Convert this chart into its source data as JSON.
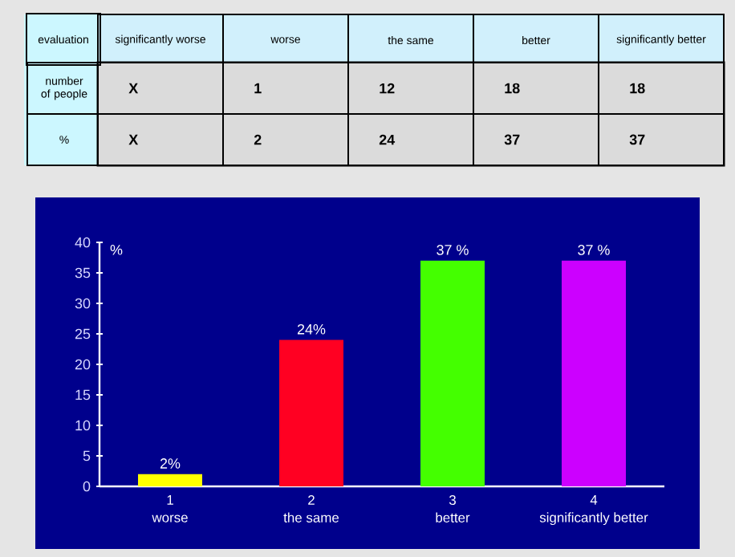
{
  "chart_data": [
    {
      "type": "other",
      "ylabel": "evaluation",
      "categories": [
        "significantly worse",
        "worse",
        "the same",
        "better",
        "significantly better"
      ],
      "y_categories": [
        "number of people",
        "%"
      ],
      "cell_labels": [
        [
          "X",
          "1",
          "12",
          "18",
          "18"
        ],
        [
          "X",
          "2",
          "24",
          "37",
          "37"
        ]
      ]
    },
    {
      "type": "bar",
      "ylabel": "%",
      "categories": [
        "1\nworse",
        "2\nthe same",
        "3\nbetter",
        "4\nsignificantly better"
      ],
      "values": [
        2,
        24,
        37,
        37
      ],
      "colors": [
        "#ffff00",
        "#ff0022",
        "#44ff00",
        "#cc00ff"
      ],
      "value_labels": [
        "2%",
        "24%",
        "37 %",
        "37 %"
      ],
      "ylim": [
        0,
        40
      ],
      "yticks": [
        0,
        5,
        10,
        15,
        20,
        25,
        30,
        35,
        40
      ],
      "grid": false
    }
  ]
}
